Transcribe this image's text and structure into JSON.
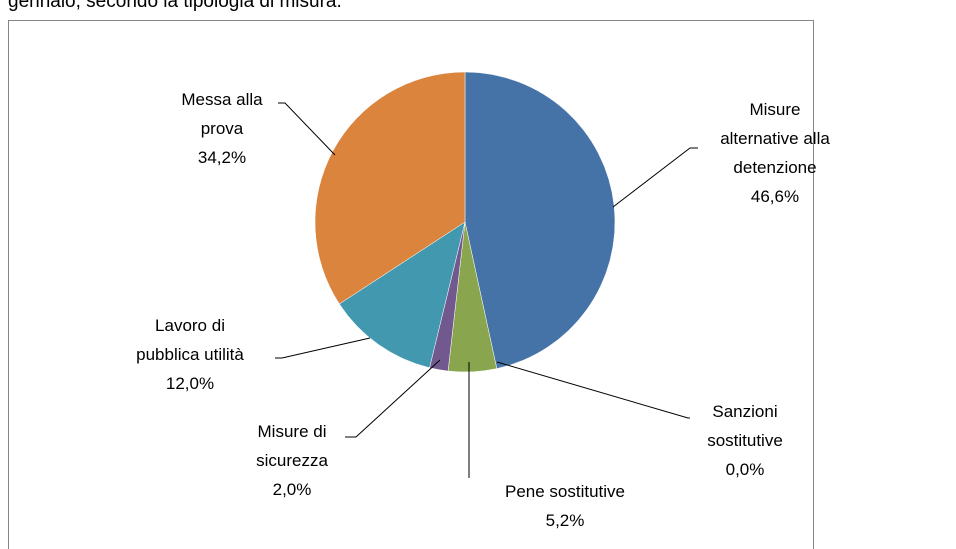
{
  "caption": "gennaio, secondo la tipologia di misura.",
  "chart_data": {
    "type": "pie",
    "categories": [
      "Misure\nalternative alla\ndetenzione",
      "Sanzioni\nsostitutive",
      "Pene sostitutive",
      "Misure di\nsicurezza",
      "Lavoro di\npubblica utilità",
      "Messa alla\nprova"
    ],
    "values": [
      46.6,
      0.0,
      5.2,
      2.0,
      12.0,
      34.2
    ],
    "value_labels": [
      "46,6%",
      "0,0%",
      "5,2%",
      "2,0%",
      "12,0%",
      "34,2%"
    ],
    "colors": [
      "#4572a7",
      "#aa4643",
      "#89a54e",
      "#71588f",
      "#4198af",
      "#db843d"
    ]
  }
}
